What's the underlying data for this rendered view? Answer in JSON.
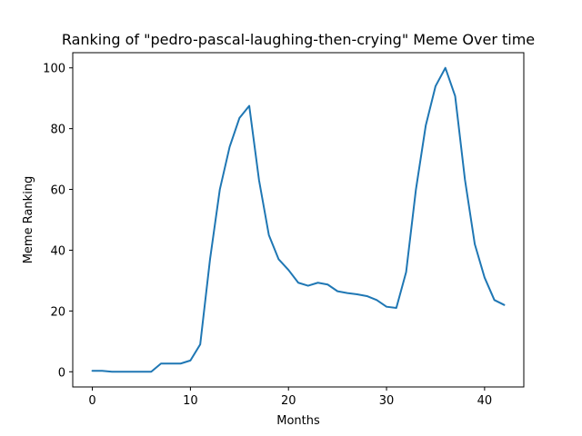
{
  "chart_data": {
    "type": "line",
    "title": "Ranking of \"pedro-pascal-laughing-then-crying\" Meme Over time",
    "xlabel": "Months",
    "ylabel": "Meme Ranking",
    "xlim": [
      -2,
      44
    ],
    "ylim": [
      -5,
      105
    ],
    "xticks": [
      0,
      10,
      20,
      30,
      40
    ],
    "yticks": [
      0,
      20,
      40,
      60,
      80,
      100
    ],
    "grid": false,
    "series": [
      {
        "color": "#1f77b4",
        "x": [
          0,
          1,
          2,
          3,
          4,
          5,
          6,
          7,
          8,
          9,
          10,
          11,
          12,
          13,
          14,
          15,
          16,
          17,
          18,
          19,
          20,
          21,
          22,
          23,
          24,
          25,
          26,
          27,
          28,
          29,
          30,
          31,
          32,
          33,
          34,
          35,
          36,
          37,
          38,
          39,
          40,
          41,
          42
        ],
        "y": [
          0.3,
          0.3,
          0,
          0,
          0,
          0,
          0,
          2.7,
          2.7,
          2.7,
          3.7,
          9,
          37,
          60,
          74,
          83.5,
          87.5,
          63,
          45,
          37,
          33.5,
          29.3,
          28.3,
          29.3,
          28.7,
          26.5,
          25.9,
          25.5,
          24.9,
          23.6,
          21.4,
          21,
          32.8,
          60,
          81,
          94,
          100,
          90.7,
          63.2,
          42,
          31,
          23.6,
          22
        ]
      }
    ]
  }
}
